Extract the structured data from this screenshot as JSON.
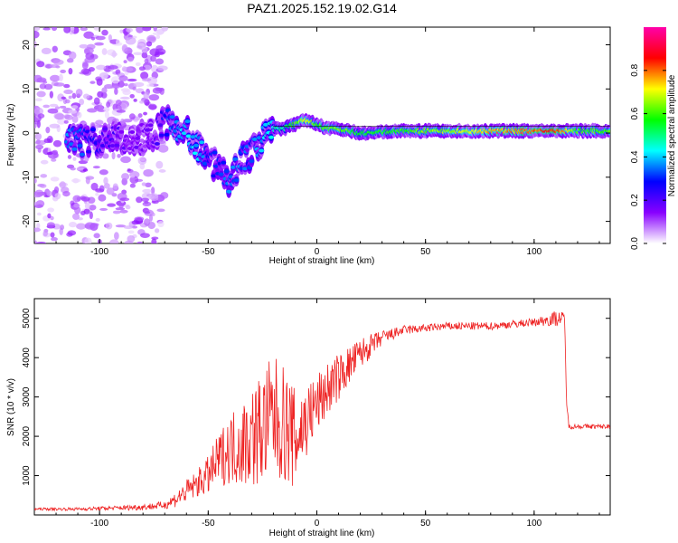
{
  "title": "PAZ1.2025.152.19.02.G14",
  "colors": {
    "snr_line": "#ee2222",
    "frame": "#000000"
  },
  "chart_data": [
    {
      "type": "heatmap",
      "xlabel": "Height of straight line (km)",
      "ylabel": "Frequency (Hz)",
      "xlim": [
        -130,
        135
      ],
      "ylim": [
        -25,
        24
      ],
      "xticks": [
        -100,
        -50,
        0,
        50,
        100
      ],
      "yticks": [
        -20,
        -10,
        0,
        10,
        20
      ],
      "colorbar": {
        "label": "Normalized spectral amplitude",
        "range": [
          0,
          1
        ],
        "ticks": [
          "0.0",
          "0.2",
          "0.4",
          "0.6",
          "0.8"
        ],
        "colormap": [
          "#ffffff",
          "#8800ff",
          "#0000ff",
          "#00ffff",
          "#00ff00",
          "#ffff00",
          "#ff0000",
          "#ff00aa"
        ]
      },
      "ridge": {
        "description_points_x": [
          -112,
          -100,
          -85,
          -75,
          -70,
          -65,
          -60,
          -55,
          -50,
          -45,
          -40,
          -35,
          -30,
          -25,
          -20,
          -15,
          -10,
          -5,
          0,
          5,
          10,
          20,
          40,
          60,
          80,
          100,
          110,
          120,
          135
        ],
        "frequency": [
          -2,
          -2,
          -1,
          -1,
          3,
          1,
          0,
          -3,
          -6,
          -8,
          -11,
          -6,
          -5,
          -1,
          1,
          1,
          2,
          3,
          2,
          1,
          1,
          0,
          0.5,
          0.5,
          0.5,
          0.5,
          0.5,
          0.5,
          0.5
        ],
        "amplitude": [
          0.35,
          0.25,
          0.15,
          0.15,
          0.3,
          0.35,
          0.4,
          0.4,
          0.3,
          0.3,
          0.35,
          0.35,
          0.3,
          0.4,
          0.45,
          0.5,
          0.6,
          0.7,
          0.6,
          0.6,
          0.65,
          0.55,
          0.6,
          0.65,
          0.75,
          0.8,
          0.85,
          0.6,
          0.6
        ]
      }
    },
    {
      "type": "line",
      "xlabel": "Height of straight line (km)",
      "ylabel": "SNR (10 * v/v)",
      "xlim": [
        -130,
        135
      ],
      "ylim": [
        0,
        5500
      ],
      "xticks": [
        -100,
        -50,
        0,
        50,
        100
      ],
      "yticks": [
        1000,
        2000,
        3000,
        4000,
        5000
      ],
      "series": [
        {
          "x": [
            -130,
            -110,
            -90,
            -80,
            -70,
            -65,
            -60,
            -55,
            -50,
            -45,
            -40,
            -35,
            -30,
            -25,
            -20,
            -15,
            -10,
            -5,
            0,
            5,
            10,
            15,
            20,
            25,
            30,
            35,
            40,
            50,
            60,
            70,
            80,
            90,
            100,
            105,
            110,
            114,
            115,
            116,
            120,
            135
          ],
          "y": [
            150,
            150,
            180,
            200,
            250,
            400,
            600,
            800,
            1000,
            1400,
            1700,
            1800,
            2000,
            2200,
            2500,
            2300,
            1900,
            2400,
            2800,
            3200,
            3500,
            3800,
            4100,
            4300,
            4500,
            4600,
            4700,
            4750,
            4800,
            4800,
            4800,
            4850,
            4900,
            4950,
            5000,
            5000,
            2800,
            2250,
            2250,
            2250
          ],
          "noise": [
            30,
            40,
            60,
            80,
            100,
            200,
            300,
            350,
            500,
            700,
            900,
            1100,
            1300,
            1500,
            1600,
            1500,
            1300,
            1000,
            800,
            700,
            600,
            500,
            400,
            300,
            200,
            150,
            120,
            100,
            100,
            100,
            100,
            100,
            100,
            150,
            200,
            150,
            80,
            60,
            60,
            60
          ]
        }
      ]
    }
  ]
}
